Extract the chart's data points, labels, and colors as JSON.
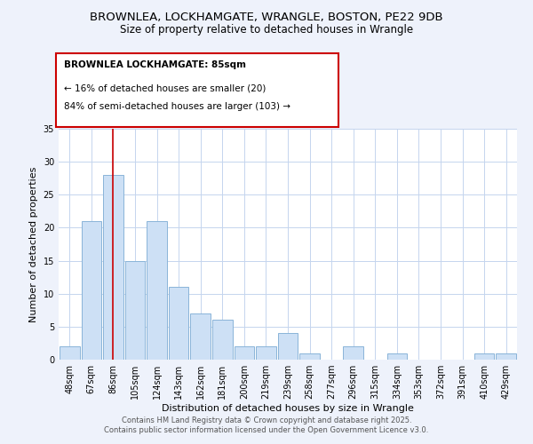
{
  "title": "BROWNLEA, LOCKHAMGATE, WRANGLE, BOSTON, PE22 9DB",
  "subtitle": "Size of property relative to detached houses in Wrangle",
  "xlabel": "Distribution of detached houses by size in Wrangle",
  "ylabel": "Number of detached properties",
  "bar_labels": [
    "48sqm",
    "67sqm",
    "86sqm",
    "105sqm",
    "124sqm",
    "143sqm",
    "162sqm",
    "181sqm",
    "200sqm",
    "219sqm",
    "239sqm",
    "258sqm",
    "277sqm",
    "296sqm",
    "315sqm",
    "334sqm",
    "353sqm",
    "372sqm",
    "391sqm",
    "410sqm",
    "429sqm"
  ],
  "bar_values": [
    2,
    21,
    28,
    15,
    21,
    11,
    7,
    6,
    2,
    2,
    4,
    1,
    0,
    2,
    0,
    1,
    0,
    0,
    0,
    1,
    1
  ],
  "bar_color": "#cde0f5",
  "bar_edge_color": "#8ab4d8",
  "vline_x": 2,
  "vline_color": "#cc0000",
  "ylim": [
    0,
    35
  ],
  "yticks": [
    0,
    5,
    10,
    15,
    20,
    25,
    30,
    35
  ],
  "annotation_title": "BROWNLEA LOCKHAMGATE: 85sqm",
  "annotation_line1": "← 16% of detached houses are smaller (20)",
  "annotation_line2": "84% of semi-detached houses are larger (103) →",
  "footer1": "Contains HM Land Registry data © Crown copyright and database right 2025.",
  "footer2": "Contains public sector information licensed under the Open Government Licence v3.0.",
  "bg_color": "#eef2fb",
  "plot_bg_color": "#ffffff",
  "grid_color": "#c5d5ee",
  "title_fontsize": 9.5,
  "subtitle_fontsize": 8.5,
  "axis_label_fontsize": 8,
  "tick_fontsize": 7,
  "annotation_fontsize": 7.5,
  "footer_fontsize": 6
}
